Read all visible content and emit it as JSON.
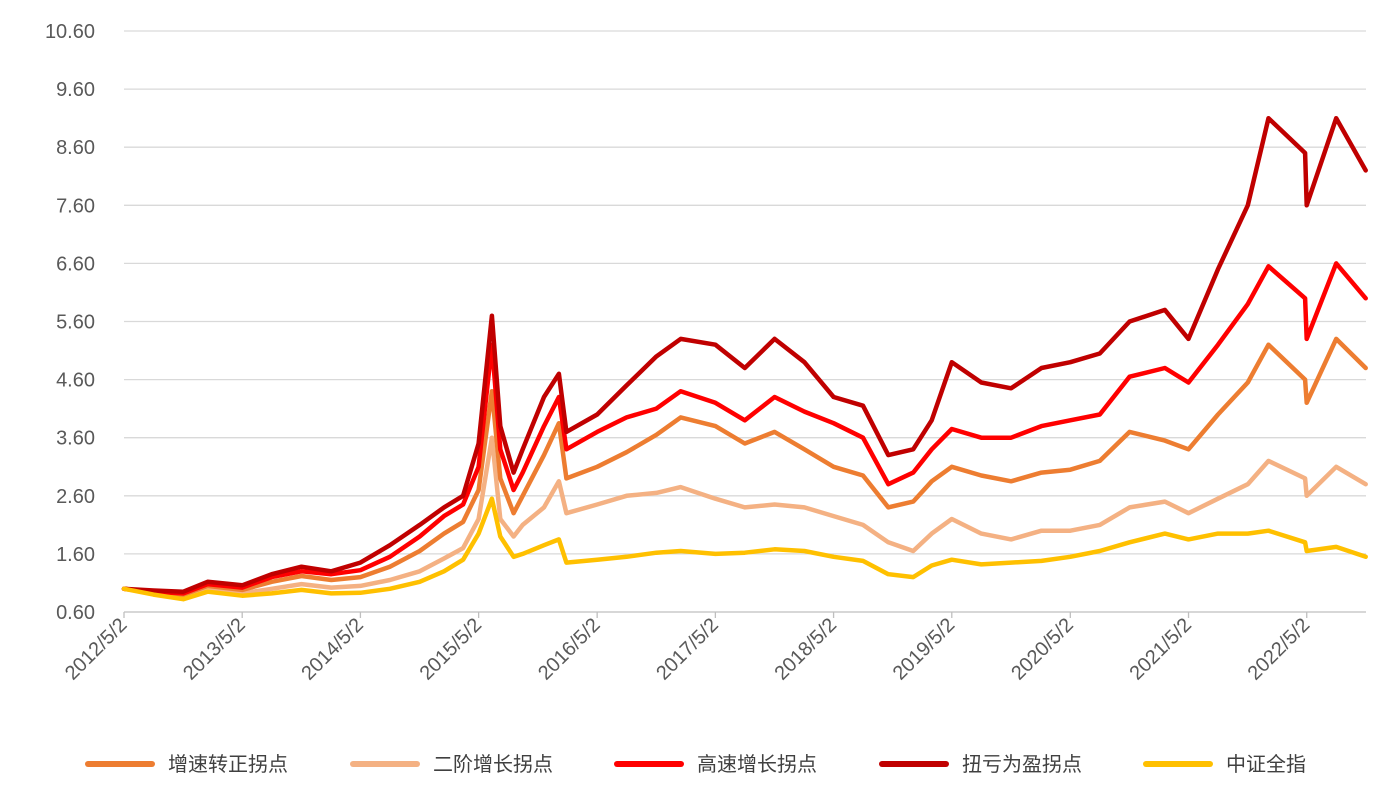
{
  "chart_data": {
    "type": "line",
    "title": "",
    "xlabel": "",
    "ylabel": "",
    "ylim": [
      0.6,
      10.6
    ],
    "yticks": [
      "0.60",
      "1.60",
      "2.60",
      "3.60",
      "4.60",
      "5.60",
      "6.60",
      "7.60",
      "8.60",
      "9.60",
      "10.60"
    ],
    "xticks": [
      "2012/5/2",
      "2013/5/2",
      "2014/5/2",
      "2015/5/2",
      "2016/5/2",
      "2017/5/2",
      "2018/5/2",
      "2019/5/2",
      "2020/5/2",
      "2021/5/2",
      "2022/5/2"
    ],
    "grid": true,
    "legend_position": "bottom",
    "x": [
      "2012-05-02",
      "2012-08-01",
      "2012-11-01",
      "2013-01-15",
      "2013-05-02",
      "2013-08-01",
      "2013-11-01",
      "2014-02-01",
      "2014-05-02",
      "2014-08-01",
      "2014-11-01",
      "2015-01-15",
      "2015-03-15",
      "2015-05-02",
      "2015-06-12",
      "2015-07-08",
      "2015-08-18",
      "2015-09-15",
      "2015-11-20",
      "2016-01-05",
      "2016-01-28",
      "2016-05-02",
      "2016-08-01",
      "2016-11-01",
      "2017-01-15",
      "2017-05-02",
      "2017-08-01",
      "2017-11-01",
      "2018-02-01",
      "2018-05-02",
      "2018-08-01",
      "2018-10-18",
      "2019-01-03",
      "2019-03-01",
      "2019-05-02",
      "2019-08-01",
      "2019-11-01",
      "2020-02-03",
      "2020-05-02",
      "2020-08-01",
      "2020-11-01",
      "2021-02-18",
      "2021-05-02",
      "2021-08-01",
      "2021-11-01",
      "2022-01-04",
      "2022-04-27",
      "2022-05-02",
      "2022-08-01",
      "2022-10-31"
    ],
    "series": [
      {
        "name": "增速转正拐点",
        "color": "#ED7D31",
        "values": [
          1.0,
          0.93,
          0.9,
          1.05,
          0.98,
          1.12,
          1.22,
          1.15,
          1.2,
          1.38,
          1.65,
          1.95,
          2.15,
          2.7,
          4.4,
          2.9,
          2.3,
          2.6,
          3.3,
          3.85,
          2.9,
          3.1,
          3.35,
          3.65,
          3.95,
          3.8,
          3.5,
          3.7,
          3.4,
          3.1,
          2.95,
          2.4,
          2.5,
          2.85,
          3.1,
          2.95,
          2.85,
          3.0,
          3.05,
          3.2,
          3.7,
          3.55,
          3.4,
          4.0,
          4.55,
          5.2,
          4.6,
          4.2,
          5.3,
          4.8
        ]
      },
      {
        "name": "二阶增长拐点",
        "color": "#F4B183",
        "values": [
          1.0,
          0.92,
          0.85,
          0.98,
          0.92,
          1.0,
          1.08,
          1.02,
          1.05,
          1.15,
          1.3,
          1.52,
          1.7,
          2.2,
          3.6,
          2.2,
          1.9,
          2.1,
          2.4,
          2.85,
          2.3,
          2.45,
          2.6,
          2.65,
          2.75,
          2.55,
          2.4,
          2.45,
          2.4,
          2.25,
          2.1,
          1.8,
          1.65,
          1.95,
          2.2,
          1.95,
          1.85,
          2.0,
          2.0,
          2.1,
          2.4,
          2.5,
          2.3,
          2.55,
          2.8,
          3.2,
          2.9,
          2.6,
          3.1,
          2.8
        ]
      },
      {
        "name": "高速增长拐点",
        "color": "#FF0000",
        "values": [
          1.0,
          0.95,
          0.92,
          1.08,
          1.02,
          1.2,
          1.3,
          1.25,
          1.32,
          1.55,
          1.9,
          2.25,
          2.45,
          3.1,
          5.2,
          3.4,
          2.7,
          3.0,
          3.8,
          4.3,
          3.4,
          3.7,
          3.95,
          4.1,
          4.4,
          4.2,
          3.9,
          4.3,
          4.05,
          3.85,
          3.6,
          2.8,
          3.0,
          3.4,
          3.75,
          3.6,
          3.6,
          3.8,
          3.9,
          4.0,
          4.65,
          4.8,
          4.55,
          5.2,
          5.9,
          6.55,
          6.0,
          5.3,
          6.6,
          6.0
        ]
      },
      {
        "name": "扭亏为盈拐点",
        "color": "#C00000",
        "values": [
          1.0,
          0.97,
          0.95,
          1.12,
          1.06,
          1.25,
          1.38,
          1.3,
          1.45,
          1.75,
          2.1,
          2.4,
          2.6,
          3.5,
          5.7,
          3.8,
          3.0,
          3.4,
          4.3,
          4.7,
          3.7,
          4.0,
          4.5,
          5.0,
          5.3,
          5.2,
          4.8,
          5.3,
          4.9,
          4.3,
          4.15,
          3.3,
          3.4,
          3.9,
          4.9,
          4.55,
          4.45,
          4.8,
          4.9,
          5.05,
          5.6,
          5.8,
          5.3,
          6.5,
          7.6,
          9.1,
          8.5,
          7.6,
          9.1,
          8.2
        ]
      },
      {
        "name": "中证全指",
        "color": "#FFC000",
        "values": [
          1.0,
          0.9,
          0.82,
          0.95,
          0.88,
          0.92,
          0.98,
          0.92,
          0.93,
          1.0,
          1.12,
          1.3,
          1.5,
          1.95,
          2.55,
          1.9,
          1.55,
          1.6,
          1.75,
          1.85,
          1.45,
          1.5,
          1.55,
          1.62,
          1.65,
          1.6,
          1.62,
          1.68,
          1.65,
          1.55,
          1.48,
          1.25,
          1.2,
          1.4,
          1.5,
          1.42,
          1.45,
          1.48,
          1.55,
          1.65,
          1.8,
          1.95,
          1.85,
          1.95,
          1.95,
          2.0,
          1.8,
          1.65,
          1.72,
          1.55
        ]
      }
    ]
  }
}
